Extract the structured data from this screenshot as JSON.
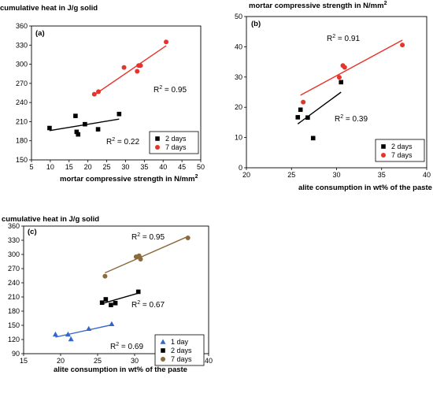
{
  "chart_data": [
    {
      "type": "scatter",
      "panel_label": "(a)",
      "ylabel": "cumulative heat in J/g solid",
      "xlabel": "mortar compressive strength in N/mm",
      "xlabel_sup": "2",
      "xlim": [
        5,
        50
      ],
      "ylim": [
        150,
        360
      ],
      "xticks": [
        5,
        10,
        15,
        20,
        25,
        30,
        35,
        40,
        45,
        50
      ],
      "yticks": [
        150,
        180,
        210,
        240,
        270,
        300,
        330,
        360
      ],
      "legend_position": "bottom-right",
      "series": [
        {
          "name": "2 days",
          "color": "#000000",
          "marker": "square",
          "x": [
            9.8,
            16.7,
            17.0,
            17.4,
            19.2,
            22.7,
            28.3
          ],
          "y": [
            200,
            219,
            194,
            190,
            206,
            198,
            222
          ],
          "fit": {
            "x": [
              9.8,
              28.3
            ],
            "y": [
              196,
              214
            ],
            "r2": "R",
            "r2_sup": "2",
            "r2_value": " = 0.22"
          }
        },
        {
          "name": "7 days",
          "color": "#e8332a",
          "marker": "circle",
          "x": [
            21.7,
            22.8,
            29.6,
            33.1,
            33.5,
            34.0,
            40.8
          ],
          "y": [
            253,
            257,
            295,
            289,
            298,
            298,
            335
          ],
          "fit": {
            "x": [
              21.7,
              40.8
            ],
            "y": [
              252,
              329
            ],
            "r2": "R",
            "r2_sup": "2",
            "r2_value": " = 0.95"
          }
        }
      ]
    },
    {
      "type": "scatter",
      "panel_label": "(b)",
      "ylabel": "mortar compressive strength in N/mm",
      "ylabel_sup": "2",
      "xlabel": "alite consumption in wt% of the paste",
      "xlim": [
        20,
        40
      ],
      "ylim": [
        0,
        50
      ],
      "xticks": [
        20,
        25,
        30,
        35,
        40
      ],
      "yticks": [
        0,
        10,
        20,
        30,
        40,
        50
      ],
      "legend_position": "bottom-right",
      "series": [
        {
          "name": "2 days",
          "color": "#000000",
          "marker": "square",
          "x": [
            25.7,
            26.0,
            26.8,
            27.4,
            30.5
          ],
          "y": [
            16.7,
            19.2,
            16.6,
            9.8,
            28.3
          ],
          "fit": {
            "x": [
              25.7,
              30.5
            ],
            "y": [
              14.5,
              25.0
            ],
            "r2": "R",
            "r2_sup": "2",
            "r2_value": " = 0.39"
          }
        },
        {
          "name": "7 days",
          "color": "#e8332a",
          "marker": "circle",
          "x": [
            26.3,
            30.3,
            30.7,
            30.9,
            37.3
          ],
          "y": [
            21.7,
            29.9,
            33.8,
            33.2,
            40.6
          ],
          "fit": {
            "x": [
              26.0,
              37.3
            ],
            "y": [
              24.0,
              42.2
            ],
            "r2": "R",
            "r2_sup": "2",
            "r2_value": " = 0.91"
          }
        }
      ]
    },
    {
      "type": "scatter",
      "panel_label": "(c)",
      "ylabel": "cumulative heat in J/g solid",
      "xlabel": "alite consumption in wt% of the paste",
      "xlim": [
        15,
        40
      ],
      "ylim": [
        90,
        360
      ],
      "xticks": [
        15,
        20,
        25,
        30,
        35,
        40
      ],
      "yticks": [
        90,
        120,
        150,
        180,
        210,
        240,
        270,
        300,
        330,
        360
      ],
      "legend_position": "bottom-right",
      "series": [
        {
          "name": "1 day",
          "color": "#3366cc",
          "marker": "triangle",
          "x": [
            19.3,
            21.0,
            21.4,
            23.8,
            26.9
          ],
          "y": [
            131,
            131,
            121,
            143,
            153
          ],
          "fit": {
            "x": [
              19.3,
              26.9
            ],
            "y": [
              125,
              151
            ],
            "r2": "R",
            "r2_sup": "2",
            "r2_value": " = 0.69"
          }
        },
        {
          "name": "2 days",
          "color": "#000000",
          "marker": "square",
          "x": [
            25.6,
            26.1,
            26.8,
            27.4,
            30.5
          ],
          "y": [
            198,
            205,
            193,
            197,
            221
          ],
          "fit": {
            "x": [
              25.6,
              30.5
            ],
            "y": [
              196,
              218
            ],
            "r2": "R",
            "r2_sup": "2",
            "r2_value": " = 0.67"
          }
        },
        {
          "name": "7 days",
          "color": "#8b6a3b",
          "marker": "circle",
          "x": [
            26.0,
            30.2,
            30.6,
            30.8,
            37.2
          ],
          "y": [
            254,
            295,
            297,
            290,
            335
          ],
          "fit": {
            "x": [
              26.0,
              37.2
            ],
            "y": [
              261,
              338
            ],
            "r2": "R",
            "r2_sup": "2",
            "r2_value": " = 0.95"
          }
        }
      ]
    }
  ]
}
